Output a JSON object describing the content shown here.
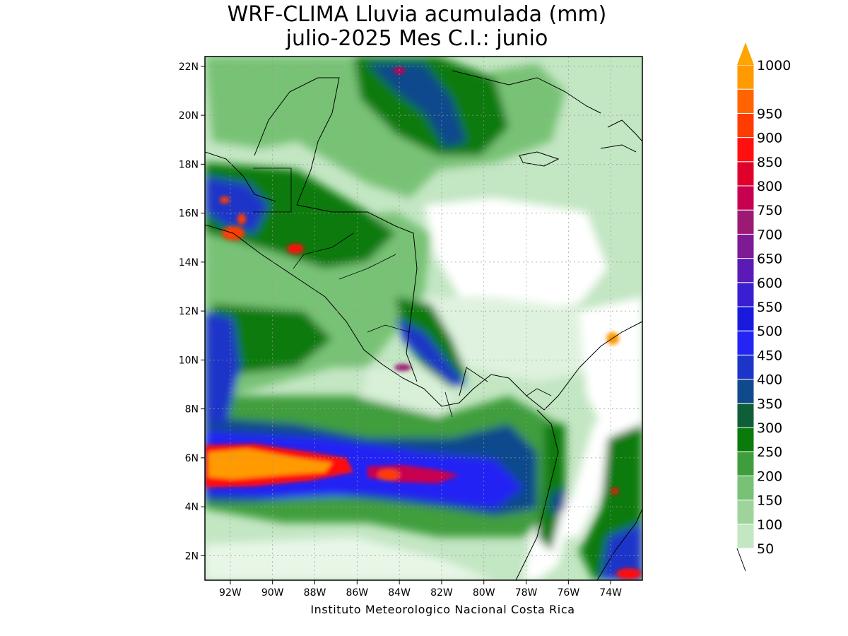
{
  "title": {
    "line1": "WRF-CLIMA Lluvia acumulada (mm)",
    "line2": "julio-2025 Mes C.I.: junio"
  },
  "credit": "Instituto Meteorologico Nacional Costa Rica",
  "map": {
    "lon_range": [
      -93.2,
      -72.5
    ],
    "lat_range": [
      1,
      22.4
    ],
    "lon_ticks": [
      "92W",
      "90W",
      "88W",
      "86W",
      "84W",
      "82W",
      "80W",
      "78W",
      "76W",
      "74W"
    ],
    "lat_ticks": [
      "22N",
      "20N",
      "18N",
      "16N",
      "14N",
      "12N",
      "10N",
      "8N",
      "6N",
      "4N",
      "2N"
    ],
    "grid": true,
    "variable": "accumulated rainfall (mm)"
  },
  "colorbar": {
    "levels": [
      "50",
      "100",
      "150",
      "200",
      "250",
      "300",
      "350",
      "400",
      "450",
      "500",
      "550",
      "600",
      "650",
      "700",
      "750",
      "800",
      "850",
      "900",
      "950",
      "1000"
    ],
    "colors": [
      "#c3e6c3",
      "#9ed49c",
      "#78c276",
      "#3f9e3c",
      "#0a7a0a",
      "#0e5e38",
      "#114a8c",
      "#1b35c8",
      "#2424f5",
      "#1a1adc",
      "#3a1ed2",
      "#5a1ab6",
      "#7d1a94",
      "#9c1a74",
      "#c80050",
      "#e0002c",
      "#ff1010",
      "#ff3c00",
      "#ff6400",
      "#ff9a00"
    ],
    "over_color": "#ffa500"
  }
}
